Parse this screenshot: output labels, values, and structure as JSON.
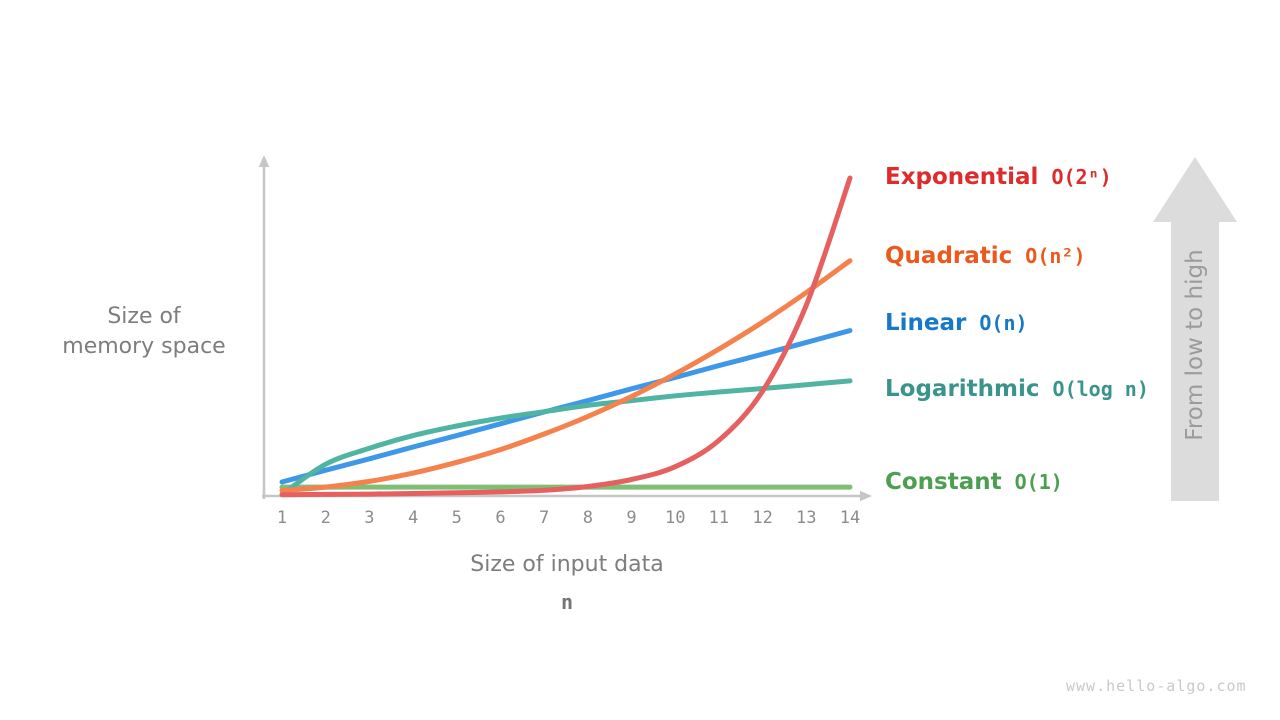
{
  "page": {
    "watermark": "www.hello-algo.com",
    "background": "#ffffff"
  },
  "colors": {
    "axis": "#c6c6c6",
    "tick_text": "#8c8c8c",
    "axis_label_text": "#7d7d7d",
    "big_arrow_fill": "#dcdcdc",
    "big_arrow_text": "#9b9b9b",
    "watermark_text": "#c9c9c9"
  },
  "chart_data": {
    "type": "line",
    "title": "",
    "xlabel": "Size of input data",
    "xlabel_symbol": "n",
    "ylabel": "Size of memory space",
    "ylabel_lines": [
      "Size of",
      "memory space"
    ],
    "x_ticks": [
      1,
      2,
      3,
      4,
      5,
      6,
      7,
      8,
      9,
      10,
      11,
      12,
      13,
      14
    ],
    "x_range": [
      1,
      14
    ],
    "grid": false,
    "legend_position": "right",
    "annotations": {
      "arrow_label": "From low to high"
    },
    "series": [
      {
        "id": "constant",
        "label": "Constant",
        "formula": "O(1)",
        "label_color": "#4c9f52",
        "curve_color": "#7fbf75",
        "x": [
          1,
          2,
          3,
          4,
          5,
          6,
          7,
          8,
          9,
          10,
          11,
          12,
          13,
          14
        ],
        "y_norm": [
          0.028,
          0.028,
          0.028,
          0.028,
          0.028,
          0.028,
          0.028,
          0.028,
          0.028,
          0.028,
          0.028,
          0.028,
          0.028,
          0.028
        ]
      },
      {
        "id": "linear",
        "label": "Linear",
        "formula": "O(n)",
        "label_color": "#1878c8",
        "curve_color": "#3f97e8",
        "x": [
          1,
          2,
          3,
          4,
          5,
          6,
          7,
          8,
          9,
          10,
          11,
          12,
          13,
          14
        ],
        "y_norm": [
          0.044,
          0.081,
          0.117,
          0.154,
          0.19,
          0.227,
          0.264,
          0.3,
          0.337,
          0.373,
          0.41,
          0.446,
          0.483,
          0.52
        ]
      },
      {
        "id": "logarithmic",
        "label": "Logarithmic",
        "formula": "O(log n)",
        "label_color": "#3b948c",
        "curve_color": "#4fb4a1",
        "x": [
          1,
          2,
          3,
          4,
          5,
          6,
          7,
          8,
          9,
          10,
          11,
          12,
          13,
          14
        ],
        "y_norm": [
          0.005,
          0.1,
          0.15,
          0.19,
          0.22,
          0.245,
          0.265,
          0.285,
          0.3,
          0.315,
          0.327,
          0.338,
          0.35,
          0.362
        ]
      },
      {
        "id": "quadratic",
        "label": "Quadratic",
        "formula": "O(n²)",
        "label_color": "#eb5a1c",
        "curve_color": "#f5814d",
        "x": [
          1,
          2,
          3,
          4,
          5,
          6,
          7,
          8,
          9,
          10,
          11,
          12,
          13,
          14
        ],
        "y_norm": [
          0.017,
          0.028,
          0.046,
          0.072,
          0.106,
          0.146,
          0.195,
          0.25,
          0.313,
          0.384,
          0.462,
          0.547,
          0.64,
          0.74
        ]
      },
      {
        "id": "exponential",
        "label": "Exponential",
        "formula": "O(2ⁿ)",
        "label_color": "#de2b2b",
        "curve_color": "#e5605f",
        "x": [
          1,
          2,
          3,
          4,
          5,
          6,
          7,
          8,
          9,
          10,
          11,
          12,
          13,
          14
        ],
        "y_norm": [
          0.004,
          0.005,
          0.006,
          0.008,
          0.01,
          0.013,
          0.018,
          0.03,
          0.052,
          0.092,
          0.175,
          0.33,
          0.6,
          1.0
        ]
      }
    ]
  }
}
